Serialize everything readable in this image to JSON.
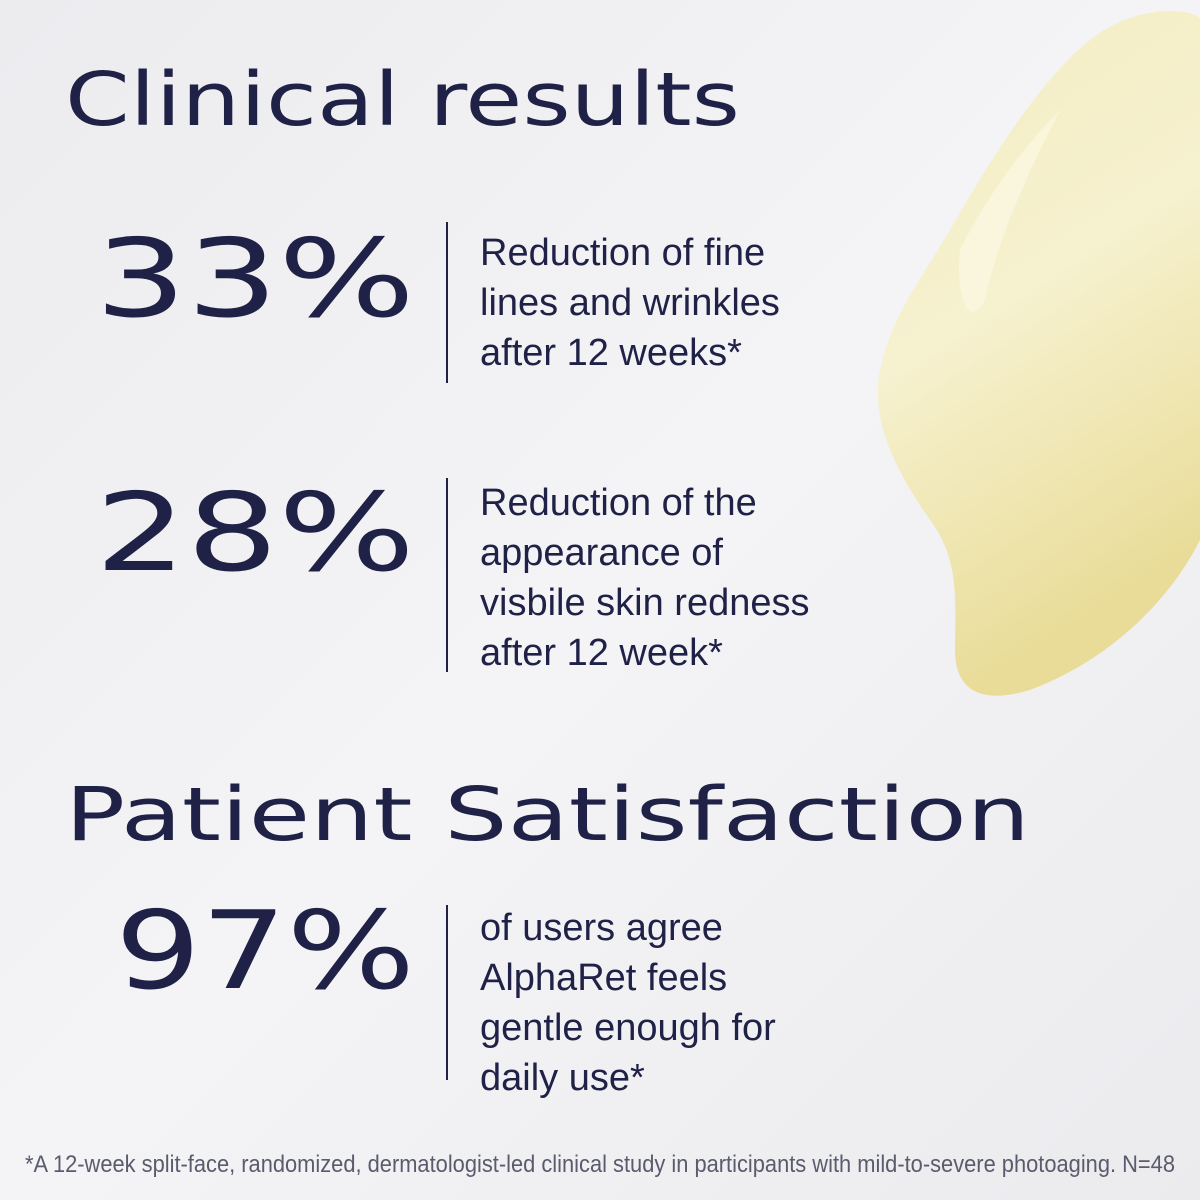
{
  "header": {
    "title": "Clinical results"
  },
  "clinical_stats": [
    {
      "figure": "33%",
      "description": [
        "Reduction of fine",
        "lines and wrinkles",
        "after 12 weeks*"
      ]
    },
    {
      "figure": "28%",
      "description": [
        "Reduction of the",
        "appearance of",
        "visbile skin redness",
        "after 12 week*"
      ]
    }
  ],
  "satisfaction": {
    "title": "Patient Satisfaction",
    "stats": [
      {
        "figure": "97%",
        "description": [
          "of users agree",
          "AlphaRet feels",
          "gentle enough for",
          "daily use*"
        ]
      }
    ]
  },
  "footnote": "*A 12-week split-face, randomized, dermatologist-led clinical study in participants with mild-to-severe photoaging. N=48"
}
